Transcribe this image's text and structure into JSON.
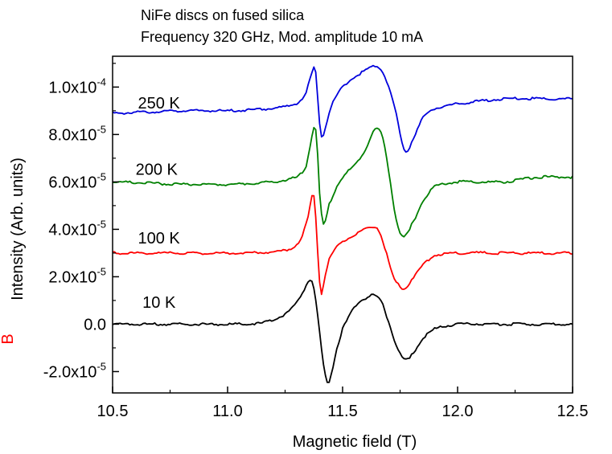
{
  "chart_data": {
    "type": "line",
    "title": "NiFe discs on fused silica",
    "subtitle": "Frequency 320 GHz, Mod. amplitude 10 mA",
    "xlabel": "Magnetic field (T)",
    "ylabel": "Intensity (Arb. units)",
    "xlim": [
      10.5,
      12.5
    ],
    "ylim": [
      -2.9e-05,
      0.000113
    ],
    "grid": false,
    "x_ticks": [
      {
        "value": 10.5,
        "label": "10.5"
      },
      {
        "value": 11.0,
        "label": "11.0"
      },
      {
        "value": 11.5,
        "label": "11.5"
      },
      {
        "value": 12.0,
        "label": "12.0"
      },
      {
        "value": 12.5,
        "label": "12.5"
      }
    ],
    "y_ticks": [
      {
        "value": -2e-05,
        "mantissa": "-2.0x10",
        "exp": "-5"
      },
      {
        "value": 0.0,
        "mantissa": "0.0",
        "exp": ""
      },
      {
        "value": 2e-05,
        "mantissa": "2.0x10",
        "exp": "-5"
      },
      {
        "value": 4e-05,
        "mantissa": "4.0x10",
        "exp": "-5"
      },
      {
        "value": 6e-05,
        "mantissa": "6.0x10",
        "exp": "-5"
      },
      {
        "value": 8e-05,
        "mantissa": "8.0x10",
        "exp": "-5"
      },
      {
        "value": 0.0001,
        "mantissa": "1.0x10",
        "exp": "-4"
      }
    ],
    "series": [
      {
        "name": "10 K",
        "color": "#000000",
        "label_at": [
          10.63,
          7e-06
        ],
        "x": [
          10.5,
          10.8,
          11.0,
          11.15,
          11.25,
          11.3,
          11.33,
          11.36,
          11.375,
          11.39,
          11.405,
          11.42,
          11.435,
          11.45,
          11.47,
          11.5,
          11.55,
          11.6,
          11.64,
          11.67,
          11.7,
          11.73,
          11.76,
          11.78,
          11.8,
          11.85,
          11.9,
          12.0,
          12.2,
          12.5
        ],
        "y": [
          0.0,
          0.0,
          0.0,
          5e-07,
          4e-06,
          9e-06,
          1.4e-05,
          1.9e-05,
          1.5e-05,
          5e-06,
          -8e-06,
          -1.9e-05,
          -2.5e-05,
          -2.1e-05,
          -1.2e-05,
          -2e-06,
          7e-06,
          1.1e-05,
          1.2e-05,
          9e-06,
          1e-06,
          -8e-06,
          -1.4e-05,
          -1.5e-05,
          -1.3e-05,
          -6e-06,
          -2e-06,
          0.0,
          0.0,
          0.0
        ]
      },
      {
        "name": "100 K",
        "color": "#ff0000",
        "label_at": [
          10.61,
          3.4e-05
        ],
        "x": [
          10.5,
          11.0,
          11.2,
          11.28,
          11.32,
          11.35,
          11.37,
          11.38,
          11.39,
          11.4,
          11.41,
          11.42,
          11.44,
          11.48,
          11.52,
          11.56,
          11.6,
          11.64,
          11.66,
          11.69,
          11.72,
          11.75,
          11.77,
          11.8,
          11.85,
          11.9,
          12.0,
          12.2,
          12.5
        ],
        "y": [
          3e-05,
          3e-05,
          3.05e-05,
          3.2e-05,
          3.6e-05,
          4.5e-05,
          5.5e-05,
          5e-05,
          3.4e-05,
          1.8e-05,
          1.3e-05,
          1.9e-05,
          2.7e-05,
          3.3e-05,
          3.6e-05,
          3.8e-05,
          4e-05,
          4.1e-05,
          3.9e-05,
          3e-05,
          2e-05,
          1.6e-05,
          1.5e-05,
          1.9e-05,
          2.5e-05,
          2.9e-05,
          3e-05,
          3e-05,
          3e-05
        ]
      },
      {
        "name": "200 K",
        "color": "#008000",
        "label_at": [
          10.6,
          6.3e-05
        ],
        "x": [
          10.5,
          10.8,
          11.0,
          11.2,
          11.3,
          11.34,
          11.36,
          11.38,
          11.39,
          11.4,
          11.41,
          11.42,
          11.44,
          11.48,
          11.52,
          11.56,
          11.6,
          11.64,
          11.67,
          11.7,
          11.73,
          11.76,
          11.78,
          11.8,
          11.85,
          11.9,
          12.0,
          12.2,
          12.35,
          12.5
        ],
        "y": [
          6e-05,
          5.9e-05,
          5.9e-05,
          6e-05,
          6.2e-05,
          6.6e-05,
          7.6e-05,
          8.4e-05,
          7.4e-05,
          5.5e-05,
          4.5e-05,
          4.2e-05,
          5e-05,
          5.9e-05,
          6.4e-05,
          6.8e-05,
          7.4e-05,
          8.2e-05,
          8e-05,
          6.5e-05,
          4.6e-05,
          3.7e-05,
          3.8e-05,
          4.2e-05,
          5.2e-05,
          5.8e-05,
          6e-05,
          6e-05,
          6.2e-05,
          6.2e-05
        ]
      },
      {
        "name": "250 K",
        "color": "#0000dd",
        "label_at": [
          10.61,
          9.1e-05
        ],
        "x": [
          10.5,
          10.8,
          11.0,
          11.2,
          11.3,
          11.34,
          11.36,
          11.38,
          11.39,
          11.4,
          11.41,
          11.42,
          11.45,
          11.5,
          11.55,
          11.6,
          11.64,
          11.67,
          11.7,
          11.73,
          11.76,
          11.78,
          11.8,
          11.85,
          11.9,
          12.0,
          12.2,
          12.5
        ],
        "y": [
          8.9e-05,
          9e-05,
          9e-05,
          9.1e-05,
          9.3e-05,
          9.7e-05,
          0.000104,
          0.000108,
          9.8e-05,
          8.5e-05,
          7.9e-05,
          8.2e-05,
          9.2e-05,
          0.0001,
          0.000104,
          0.000107,
          0.000109,
          0.000107,
          0.0001,
          9e-05,
          7.6e-05,
          7.3e-05,
          7.7e-05,
          8.7e-05,
          9.1e-05,
          9.3e-05,
          9.5e-05,
          9.5e-05
        ]
      }
    ]
  },
  "stray_text": "B"
}
